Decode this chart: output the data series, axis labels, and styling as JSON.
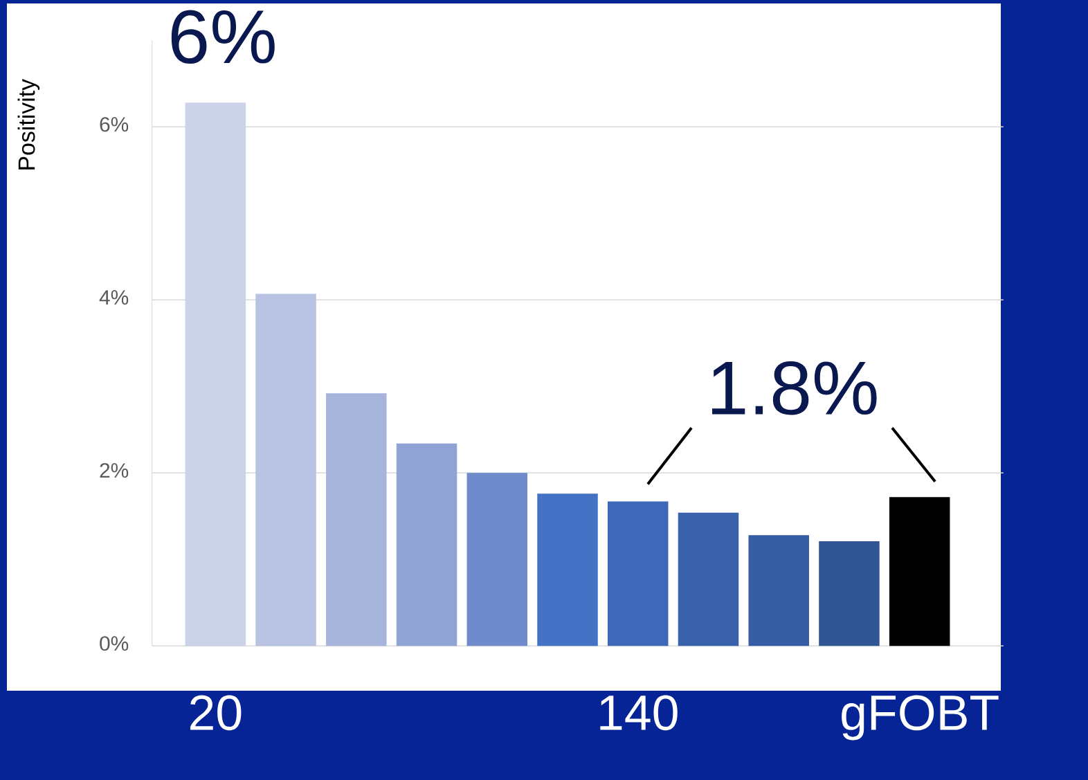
{
  "chart_data": {
    "type": "bar",
    "ylabel": "Positivity",
    "categories": [
      "20",
      null,
      null,
      null,
      null,
      null,
      "140",
      null,
      null,
      null,
      "gFOBT"
    ],
    "values": [
      6.28,
      4.07,
      2.92,
      2.34,
      2.0,
      1.76,
      1.67,
      1.54,
      1.28,
      1.21,
      1.72
    ],
    "colors": [
      "#cbd3e9",
      "#b8c3e3",
      "#a7b5dc",
      "#8fa4d4",
      "#6f8bcb",
      "#4472c4",
      "#3f69b8",
      "#3a62ab",
      "#365da4",
      "#325593",
      "#000000"
    ],
    "ylim": [
      0,
      7
    ],
    "yticks": [
      {
        "value": 0,
        "label": "0%"
      },
      {
        "value": 2,
        "label": "2%"
      },
      {
        "value": 4,
        "label": "4%"
      },
      {
        "value": 6,
        "label": "6%"
      }
    ],
    "grid": "y",
    "annotations": [
      "6%",
      "1.8%"
    ]
  }
}
